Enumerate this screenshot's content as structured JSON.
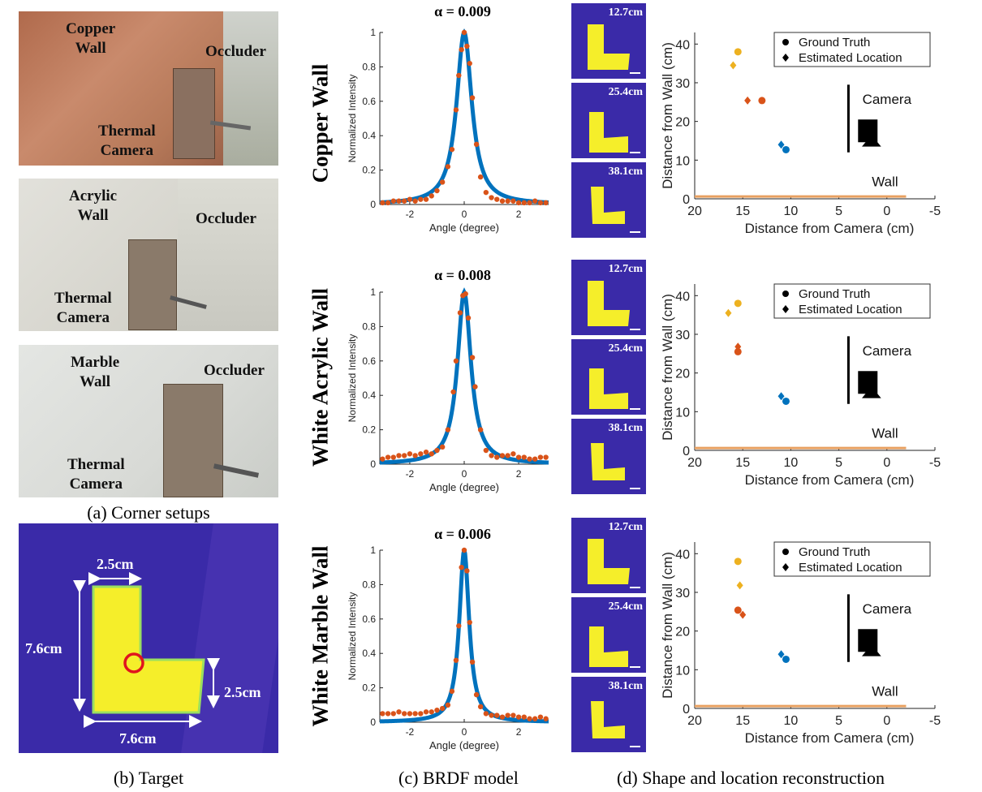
{
  "captions": {
    "a": "(a) Corner setups",
    "b": "(b) Target",
    "c": "(c) BRDF model",
    "d": "(d) Shape and location reconstruction"
  },
  "setups": [
    {
      "wall_line1": "Copper",
      "wall_line2": "Wall",
      "occluder": "Occluder",
      "cam_line1": "Thermal",
      "cam_line2": "Camera"
    },
    {
      "wall_line1": "Acrylic",
      "wall_line2": "Wall",
      "occluder": "Occluder",
      "cam_line1": "Thermal",
      "cam_line2": "Camera"
    },
    {
      "wall_line1": "Marble",
      "wall_line2": "Wall",
      "occluder": "Occluder",
      "cam_line1": "Thermal",
      "cam_line2": "Camera"
    }
  ],
  "target": {
    "dim_top": "2.5cm",
    "dim_left": "7.6cm",
    "dim_right": "2.5cm",
    "dim_bottom": "7.6cm"
  },
  "rows": [
    {
      "label": "Copper Wall",
      "alpha": "α = 0.009",
      "thumbs": [
        "12.7cm",
        "25.4cm",
        "38.1cm"
      ],
      "location": {
        "ground_truth": [
          [
            15.5,
            38.0
          ],
          [
            13.0,
            25.4
          ],
          [
            10.5,
            12.7
          ]
        ],
        "estimated": [
          [
            16.0,
            34.5
          ],
          [
            14.5,
            25.4
          ],
          [
            11.0,
            14.0
          ]
        ]
      }
    },
    {
      "label": "White Acrylic Wall",
      "alpha": "α = 0.008",
      "thumbs": [
        "12.7cm",
        "25.4cm",
        "38.1cm"
      ],
      "location": {
        "ground_truth": [
          [
            15.5,
            38.0
          ],
          [
            15.5,
            25.5
          ],
          [
            10.5,
            12.7
          ]
        ],
        "estimated": [
          [
            16.5,
            35.5
          ],
          [
            15.5,
            26.8
          ],
          [
            11.0,
            14.0
          ]
        ]
      }
    },
    {
      "label": "White Marble Wall",
      "alpha": "α = 0.006",
      "thumbs": [
        "12.7cm",
        "25.4cm",
        "38.1cm"
      ],
      "location": {
        "ground_truth": [
          [
            15.5,
            38.0
          ],
          [
            15.5,
            25.4
          ],
          [
            10.5,
            12.7
          ]
        ],
        "estimated": [
          [
            15.3,
            31.8
          ],
          [
            15.0,
            24.2
          ],
          [
            11.0,
            14.0
          ]
        ]
      }
    }
  ],
  "chart_data": [
    {
      "type": "line",
      "xlabel": "Angle (degree)",
      "ylabel": "Normalized Intensity",
      "xlim": [
        -3.1,
        3.1
      ],
      "ylim": [
        0,
        1
      ],
      "xticks": [
        -2,
        0,
        2
      ],
      "yticks": [
        0,
        0.2,
        0.4,
        0.6,
        0.8,
        1
      ],
      "model_alpha": 0.009,
      "series": [
        {
          "kind": "model fit",
          "color": "#0072bd",
          "peak_at": 0
        },
        {
          "kind": "measured",
          "color": "#d95319",
          "x": [
            -3.0,
            -2.8,
            -2.6,
            -2.4,
            -2.2,
            -2.0,
            -1.8,
            -1.6,
            -1.4,
            -1.2,
            -1.0,
            -0.8,
            -0.6,
            -0.45,
            -0.3,
            -0.2,
            -0.1,
            0,
            0.1,
            0.2,
            0.3,
            0.45,
            0.6,
            0.8,
            1.0,
            1.2,
            1.4,
            1.6,
            1.8,
            2.0,
            2.2,
            2.4,
            2.6,
            2.8,
            3.0
          ],
          "y": [
            0.01,
            0.01,
            0.02,
            0.02,
            0.02,
            0.03,
            0.02,
            0.03,
            0.03,
            0.05,
            0.08,
            0.13,
            0.22,
            0.32,
            0.55,
            0.75,
            0.9,
            1.0,
            0.92,
            0.82,
            0.62,
            0.35,
            0.16,
            0.07,
            0.04,
            0.03,
            0.02,
            0.02,
            0.02,
            0.01,
            0.01,
            0.01,
            0.02,
            0.01,
            0.01
          ]
        }
      ]
    },
    {
      "type": "line",
      "xlabel": "Angle (degree)",
      "ylabel": "Normalized Intensity",
      "xlim": [
        -3.1,
        3.1
      ],
      "ylim": [
        0,
        1
      ],
      "xticks": [
        -2,
        0,
        2
      ],
      "yticks": [
        0,
        0.2,
        0.4,
        0.6,
        0.8,
        1
      ],
      "model_alpha": 0.008,
      "series": [
        {
          "kind": "model fit",
          "color": "#0072bd",
          "peak_at": 0
        },
        {
          "kind": "measured",
          "color": "#d95319",
          "x": [
            -3.0,
            -2.8,
            -2.6,
            -2.4,
            -2.2,
            -2.0,
            -1.8,
            -1.6,
            -1.4,
            -1.2,
            -1.0,
            -0.8,
            -0.6,
            -0.4,
            -0.3,
            -0.15,
            -0.05,
            0.05,
            0.15,
            0.3,
            0.4,
            0.6,
            0.8,
            1.0,
            1.2,
            1.4,
            1.6,
            1.8,
            2.0,
            2.2,
            2.4,
            2.6,
            2.8,
            3.0
          ],
          "y": [
            0.03,
            0.04,
            0.04,
            0.05,
            0.05,
            0.06,
            0.05,
            0.06,
            0.07,
            0.06,
            0.08,
            0.1,
            0.2,
            0.42,
            0.6,
            0.88,
            0.98,
            0.99,
            0.85,
            0.62,
            0.45,
            0.2,
            0.08,
            0.05,
            0.04,
            0.05,
            0.05,
            0.06,
            0.04,
            0.04,
            0.03,
            0.03,
            0.04,
            0.04
          ]
        }
      ]
    },
    {
      "type": "line",
      "xlabel": "Angle (degree)",
      "ylabel": "Normalized Intensity",
      "xlim": [
        -3.1,
        3.1
      ],
      "ylim": [
        0,
        1
      ],
      "xticks": [
        -2,
        0,
        2
      ],
      "yticks": [
        0,
        0.2,
        0.4,
        0.6,
        0.8,
        1
      ],
      "model_alpha": 0.006,
      "series": [
        {
          "kind": "model fit",
          "color": "#0072bd",
          "peak_at": 0
        },
        {
          "kind": "measured",
          "color": "#d95319",
          "x": [
            -3.0,
            -2.8,
            -2.6,
            -2.4,
            -2.2,
            -2.0,
            -1.8,
            -1.6,
            -1.4,
            -1.2,
            -1.0,
            -0.8,
            -0.6,
            -0.45,
            -0.3,
            -0.2,
            -0.1,
            0,
            0.1,
            0.2,
            0.3,
            0.45,
            0.6,
            0.8,
            1.0,
            1.2,
            1.4,
            1.6,
            1.8,
            2.0,
            2.2,
            2.4,
            2.6,
            2.8,
            3.0
          ],
          "y": [
            0.05,
            0.05,
            0.05,
            0.06,
            0.05,
            0.05,
            0.05,
            0.05,
            0.06,
            0.06,
            0.07,
            0.08,
            0.1,
            0.18,
            0.36,
            0.56,
            0.9,
            1.0,
            0.88,
            0.58,
            0.35,
            0.16,
            0.09,
            0.05,
            0.04,
            0.04,
            0.03,
            0.04,
            0.04,
            0.03,
            0.03,
            0.02,
            0.02,
            0.03,
            0.02
          ]
        }
      ]
    },
    {
      "type": "scatter",
      "xlabel": "Distance from Camera (cm)",
      "ylabel": "Distance from Wall (cm)",
      "xlim": [
        20,
        -5
      ],
      "ylim": [
        0,
        43
      ],
      "xticks": [
        20,
        15,
        10,
        5,
        0,
        -5
      ],
      "yticks": [
        0,
        10,
        20,
        30,
        40
      ],
      "legend": [
        "Ground Truth",
        "Estimated Location"
      ],
      "legend_position": "top-right",
      "annotations": [
        "Camera",
        "Wall"
      ],
      "colors": [
        "#edb120",
        "#d95319",
        "#0072bd"
      ],
      "ground_truth": [
        [
          15.5,
          38.0
        ],
        [
          13.0,
          25.4
        ],
        [
          10.5,
          12.7
        ]
      ],
      "estimated": [
        [
          16.0,
          34.5
        ],
        [
          14.5,
          25.4
        ],
        [
          11.0,
          14.0
        ]
      ]
    },
    {
      "type": "scatter",
      "xlabel": "Distance from Camera (cm)",
      "ylabel": "Distance from Wall (cm)",
      "xlim": [
        20,
        -5
      ],
      "ylim": [
        0,
        43
      ],
      "xticks": [
        20,
        15,
        10,
        5,
        0,
        -5
      ],
      "yticks": [
        0,
        10,
        20,
        30,
        40
      ],
      "legend": [
        "Ground Truth",
        "Estimated Location"
      ],
      "legend_position": "top-right",
      "annotations": [
        "Camera",
        "Wall"
      ],
      "colors": [
        "#edb120",
        "#d95319",
        "#0072bd"
      ],
      "ground_truth": [
        [
          15.5,
          38.0
        ],
        [
          15.5,
          25.5
        ],
        [
          10.5,
          12.7
        ]
      ],
      "estimated": [
        [
          16.5,
          35.5
        ],
        [
          15.5,
          26.8
        ],
        [
          11.0,
          14.0
        ]
      ]
    },
    {
      "type": "scatter",
      "xlabel": "Distance from Camera (cm)",
      "ylabel": "Distance from Wall (cm)",
      "xlim": [
        20,
        -5
      ],
      "ylim": [
        0,
        43
      ],
      "xticks": [
        20,
        15,
        10,
        5,
        0,
        -5
      ],
      "yticks": [
        0,
        10,
        20,
        30,
        40
      ],
      "legend": [
        "Ground Truth",
        "Estimated Location"
      ],
      "legend_position": "top-right",
      "annotations": [
        "Camera",
        "Wall"
      ],
      "colors": [
        "#edb120",
        "#d95319",
        "#0072bd"
      ],
      "ground_truth": [
        [
          15.5,
          38.0
        ],
        [
          15.5,
          25.4
        ],
        [
          10.5,
          12.7
        ]
      ],
      "estimated": [
        [
          15.3,
          31.8
        ],
        [
          15.0,
          24.2
        ],
        [
          11.0,
          14.0
        ]
      ]
    }
  ],
  "colors": {
    "thermal_bg": "#3a2aa8",
    "thermal_target": "#f5ee2a",
    "fit_line": "#0072bd",
    "measured": "#d95319",
    "near": "#edb120",
    "wall_line": "#e8a060",
    "marker_ring": "#e0141e"
  }
}
